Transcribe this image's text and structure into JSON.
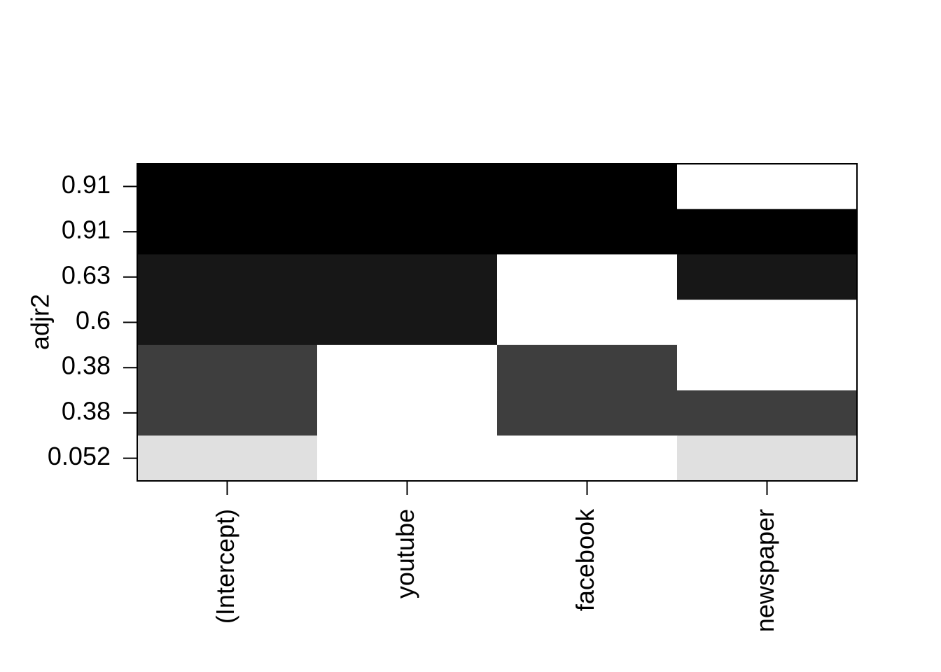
{
  "chart_data": {
    "type": "heatmap",
    "ylabel": "adjr2",
    "categories": [
      "(Intercept)",
      "youtube",
      "facebook",
      "newspaper"
    ],
    "row_labels": [
      0.91,
      0.91,
      0.63,
      0.6,
      0.38,
      0.38,
      0.052
    ],
    "row_colors": [
      "#000000",
      "#000000",
      "#171717",
      "#171717",
      "#3e3e3e",
      "#3e3e3e",
      "#e0e0e0"
    ],
    "values": [
      [
        1,
        1,
        1,
        0
      ],
      [
        1,
        1,
        1,
        1
      ],
      [
        1,
        1,
        0,
        1
      ],
      [
        1,
        1,
        0,
        0
      ],
      [
        1,
        0,
        1,
        0
      ],
      [
        1,
        0,
        1,
        1
      ],
      [
        1,
        0,
        0,
        1
      ]
    ]
  }
}
